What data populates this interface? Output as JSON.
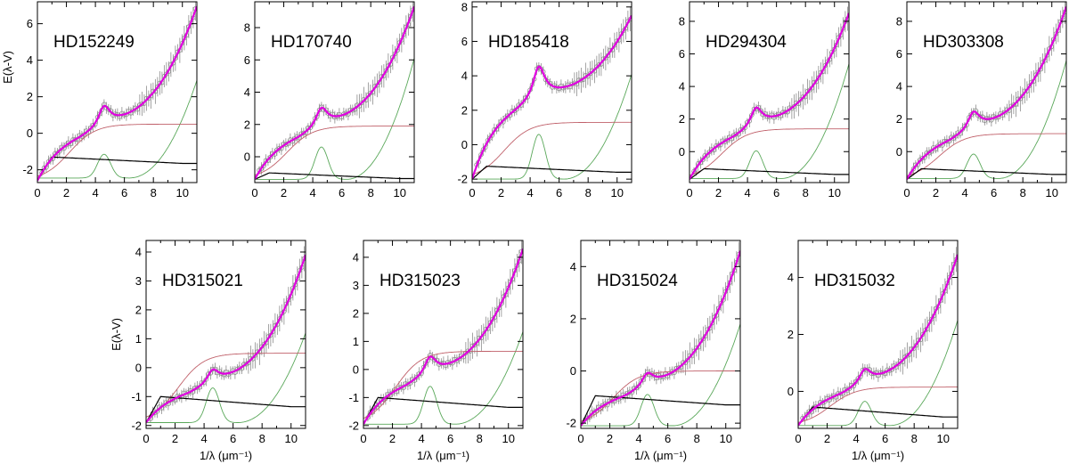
{
  "figure": {
    "ylabel": "E(λ-V)",
    "xlabel": "1/λ (μm⁻¹)"
  },
  "colors": {
    "fit": "#e000e0",
    "component_red": "#c0606a",
    "component_green": "#5aa85a",
    "component_black": "#000000",
    "observed": "#8c8c8c"
  },
  "chart_data": [
    {
      "type": "line",
      "star": "HD152249",
      "xlim": [
        0,
        11
      ],
      "ylim": [
        -2.7,
        7.2
      ],
      "xticks": [
        0,
        2,
        4,
        6,
        8,
        10
      ],
      "yticks": [
        -2,
        0,
        2,
        4,
        6
      ],
      "ylabel_shown": true,
      "xlabel_shown": false,
      "curve": {
        "rv": -2.6,
        "hump": 1.3,
        "fuv": 6.95,
        "red_level": 0.5,
        "black_end": -1.65,
        "green_base": -2.45,
        "green_bump": 1.3,
        "green_top": 2.9
      }
    },
    {
      "type": "line",
      "star": "HD170740",
      "xlim": [
        0,
        11
      ],
      "ylim": [
        -1.6,
        9.6
      ],
      "xticks": [
        0,
        2,
        4,
        6,
        8,
        10
      ],
      "yticks": [
        0,
        2,
        4,
        6,
        8
      ],
      "ylabel_shown": false,
      "xlabel_shown": false,
      "curve": {
        "rv": -1.4,
        "hump": 1.4,
        "fuv": 9.3,
        "red_level": 1.9,
        "black_end": -1.35,
        "green_base": -1.4,
        "green_bump": 2.0,
        "green_top": 6.1
      }
    },
    {
      "type": "line",
      "star": "HD185418",
      "xlim": [
        0,
        11
      ],
      "ylim": [
        -2.2,
        8.3
      ],
      "xticks": [
        0,
        2,
        4,
        6,
        8,
        10
      ],
      "yticks": [
        -2,
        0,
        2,
        4,
        6,
        8
      ],
      "ylabel_shown": false,
      "xlabel_shown": false,
      "curve": {
        "rv": -2.0,
        "hump": 2.2,
        "fuv": 7.5,
        "red_level": 1.3,
        "black_end": -1.6,
        "green_base": -2.0,
        "green_bump": 2.6,
        "green_top": 4.1
      }
    },
    {
      "type": "line",
      "star": "HD294304",
      "xlim": [
        0,
        11
      ],
      "ylim": [
        -1.9,
        9.2
      ],
      "xticks": [
        0,
        2,
        4,
        6,
        8,
        10
      ],
      "yticks": [
        0,
        2,
        4,
        6,
        8
      ],
      "ylabel_shown": false,
      "xlabel_shown": false,
      "curve": {
        "rv": -1.7,
        "hump": 1.4,
        "fuv": 8.5,
        "red_level": 1.4,
        "black_end": -1.4,
        "green_base": -1.65,
        "green_bump": 1.7,
        "green_top": 5.4
      }
    },
    {
      "type": "line",
      "star": "HD303308",
      "xlim": [
        0,
        11
      ],
      "ylim": [
        -1.9,
        9.2
      ],
      "xticks": [
        0,
        2,
        4,
        6,
        8,
        10
      ],
      "yticks": [
        0,
        2,
        4,
        6,
        8
      ],
      "ylabel_shown": false,
      "xlabel_shown": false,
      "curve": {
        "rv": -1.7,
        "hump": 1.3,
        "fuv": 8.9,
        "red_level": 1.1,
        "black_end": -1.4,
        "green_base": -1.65,
        "green_bump": 1.5,
        "green_top": 5.6
      }
    },
    {
      "type": "line",
      "star": "HD315021",
      "xlim": [
        0,
        11
      ],
      "ylim": [
        -2.1,
        4.4
      ],
      "xticks": [
        0,
        2,
        4,
        6,
        8,
        10
      ],
      "yticks": [
        -2,
        -1,
        0,
        1,
        2,
        3,
        4
      ],
      "ylabel_shown": true,
      "xlabel_shown": true,
      "curve": {
        "rv": -1.9,
        "hump": 0.55,
        "fuv": 3.9,
        "red_level": 0.5,
        "black_end": -1.35,
        "green_base": -1.9,
        "green_bump": 1.2,
        "green_top": 1.2
      }
    },
    {
      "type": "line",
      "star": "HD315023",
      "xlim": [
        0,
        11
      ],
      "ylim": [
        -2.1,
        4.6
      ],
      "xticks": [
        0,
        2,
        4,
        6,
        8,
        10
      ],
      "yticks": [
        -2,
        -1,
        0,
        1,
        2,
        3,
        4
      ],
      "ylabel_shown": false,
      "xlabel_shown": true,
      "curve": {
        "rv": -1.95,
        "hump": 0.75,
        "fuv": 4.3,
        "red_level": 0.65,
        "black_end": -1.35,
        "green_base": -1.95,
        "green_bump": 1.35,
        "green_top": 1.35
      }
    },
    {
      "type": "line",
      "star": "HD315024",
      "xlim": [
        0,
        11
      ],
      "ylim": [
        -2.2,
        5.0
      ],
      "xticks": [
        0,
        2,
        4,
        6,
        8,
        10
      ],
      "yticks": [
        -2,
        0,
        2,
        4
      ],
      "ylabel_shown": false,
      "xlabel_shown": true,
      "curve": {
        "rv": -2.1,
        "hump": 0.6,
        "fuv": 4.6,
        "red_level": 0.0,
        "black_end": -1.3,
        "green_base": -2.1,
        "green_bump": 1.2,
        "green_top": 1.8
      }
    },
    {
      "type": "line",
      "star": "HD315032",
      "xlim": [
        0,
        11
      ],
      "ylim": [
        -1.3,
        5.3
      ],
      "xticks": [
        0,
        2,
        4,
        6,
        8,
        10
      ],
      "yticks": [
        0,
        2,
        4
      ],
      "ylabel_shown": false,
      "xlabel_shown": true,
      "curve": {
        "rv": -1.2,
        "hump": 0.6,
        "fuv": 4.8,
        "red_level": 0.15,
        "black_end": -0.9,
        "green_base": -1.2,
        "green_bump": 0.85,
        "green_top": 2.5
      }
    }
  ]
}
